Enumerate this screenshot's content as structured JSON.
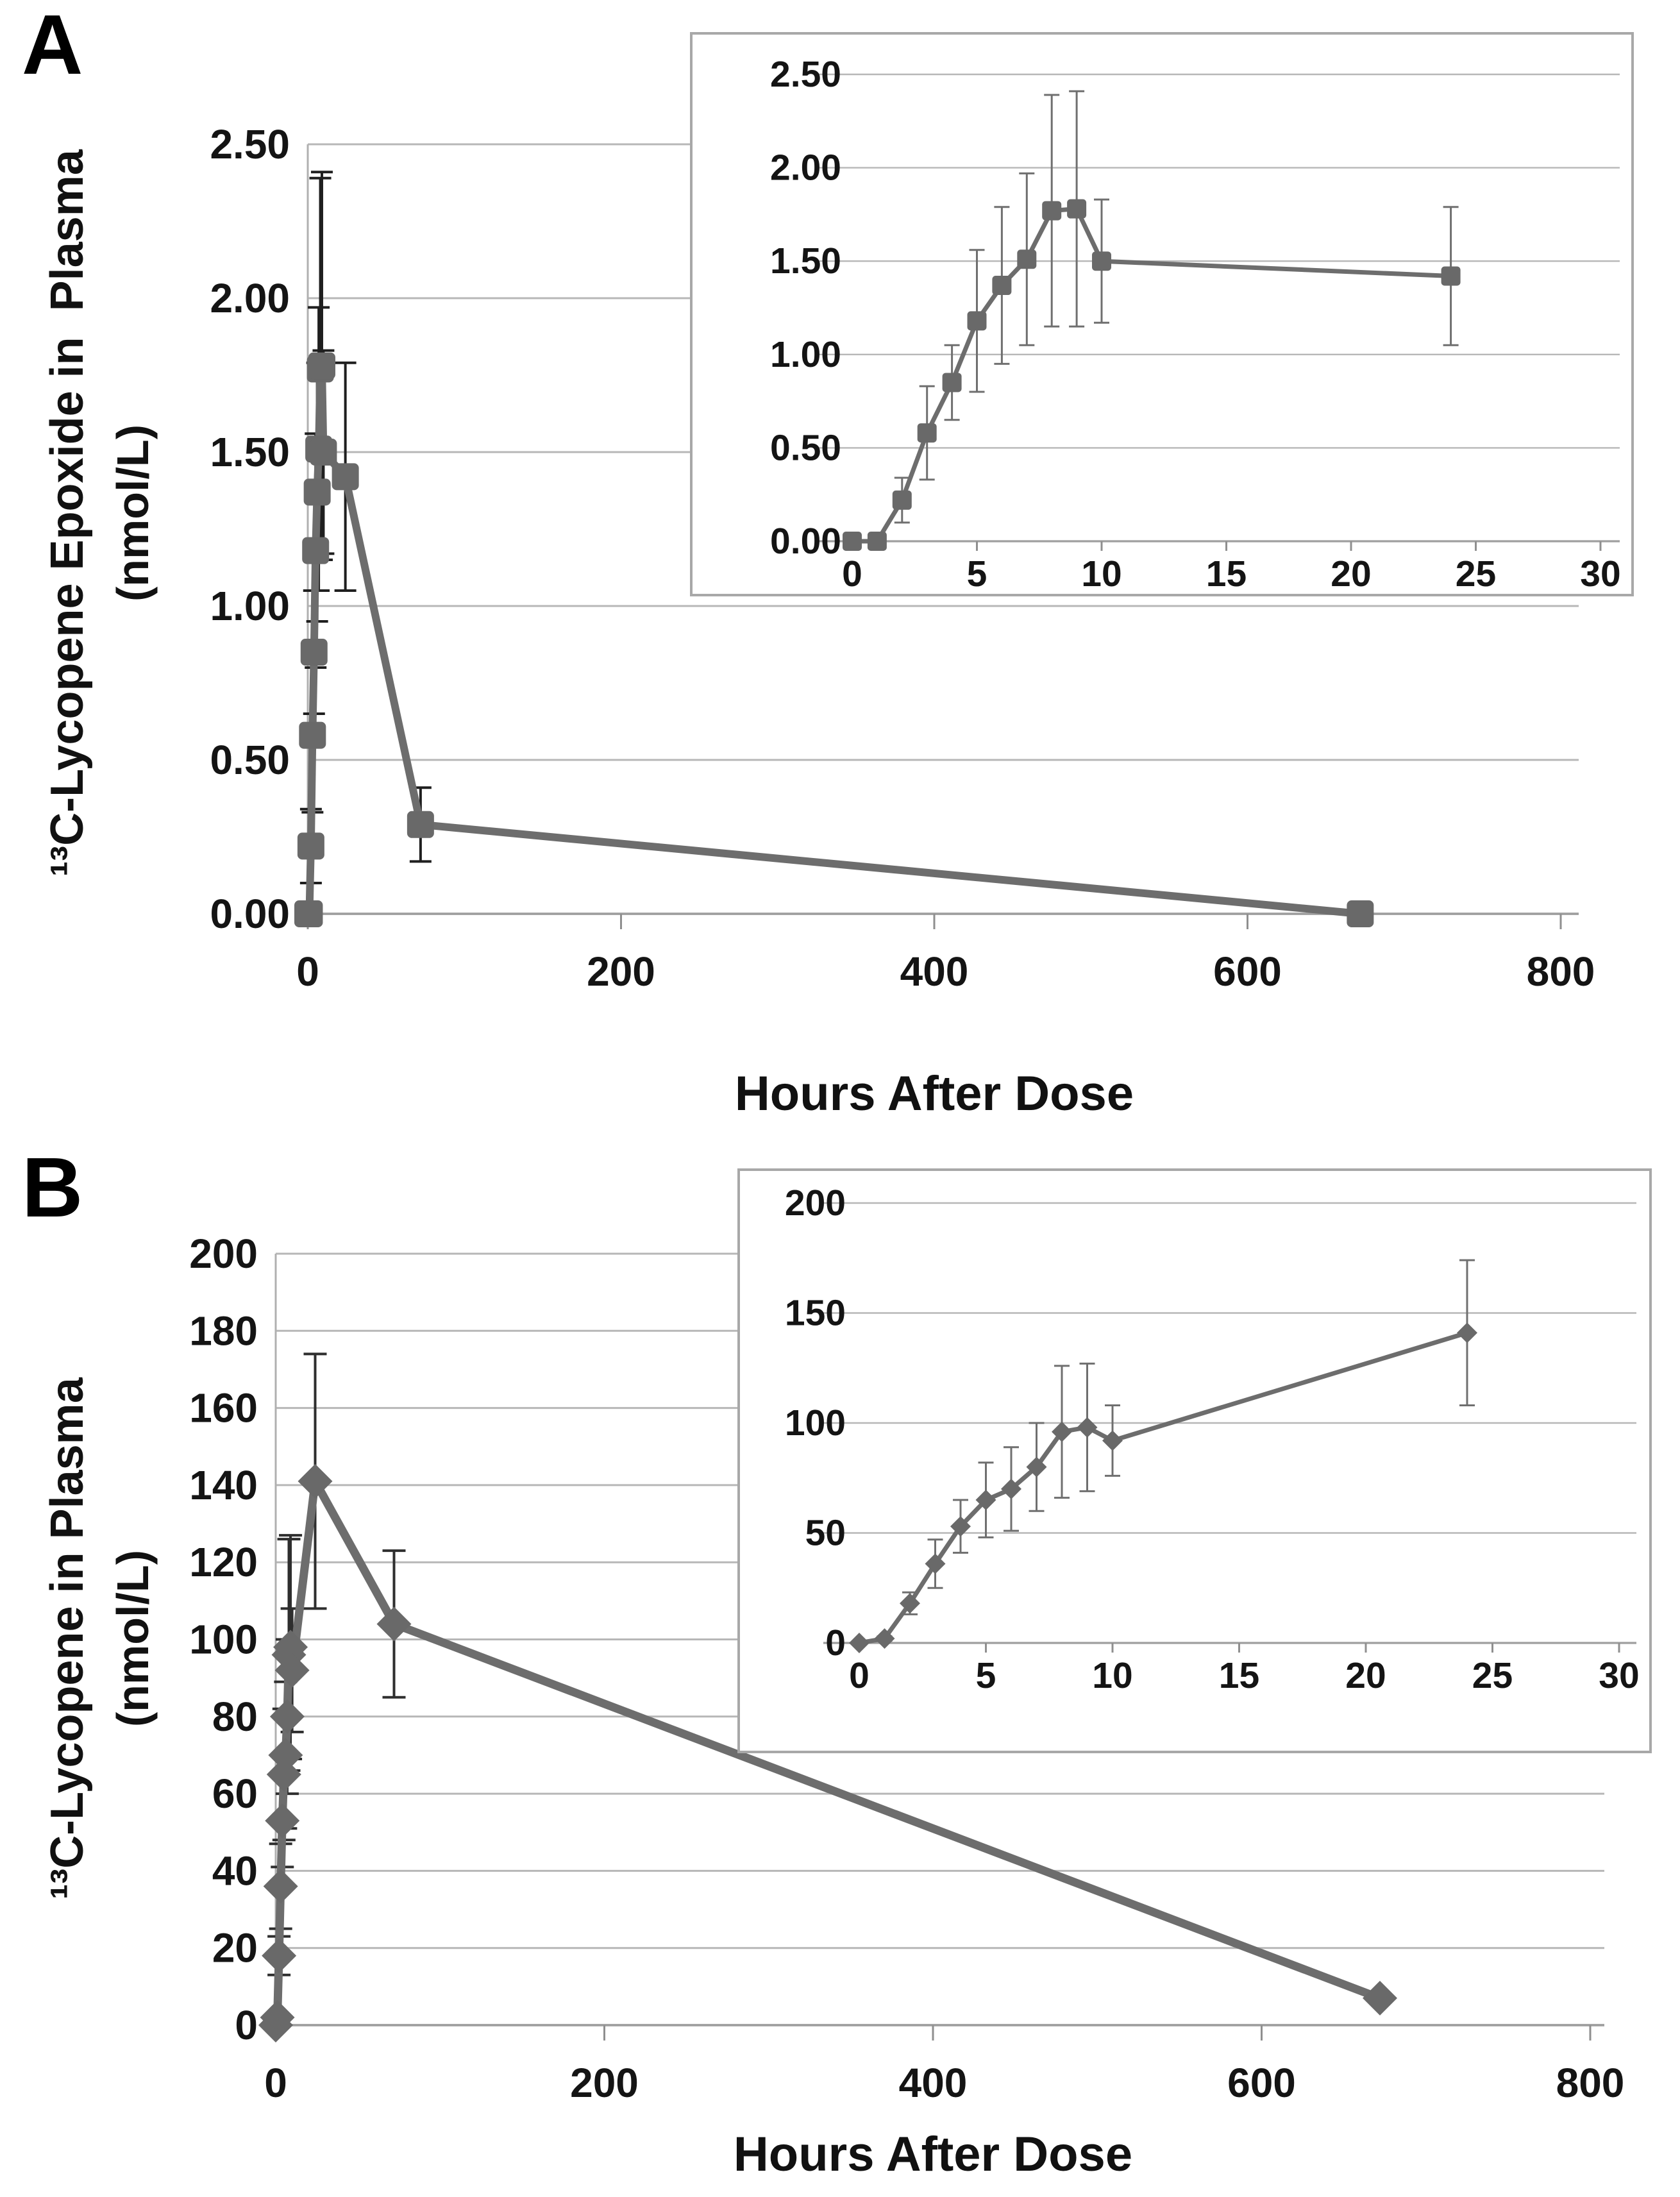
{
  "panels": {
    "a": {
      "label": "A",
      "y_title_line1": "¹³C-Lycopene Epoxide in  Plasma",
      "y_title_line2": "(nmol/L)",
      "x_title": "Hours After Dose"
    },
    "b": {
      "label": "B",
      "y_title_line1": "¹³C-Lycopene in Plasma",
      "y_title_line2": "(nmol/L)",
      "x_title": "Hours After Dose"
    }
  },
  "colors": {
    "series": "#6d6d6d",
    "marker": "#696969",
    "grid": "#b7b7b7",
    "axis": "#9f9f9f",
    "text": "#141414"
  },
  "chart_data": [
    {
      "id": "panel-a-main",
      "type": "line",
      "marker": "square",
      "title": "",
      "xlabel": "Hours After Dose",
      "ylabel": "13C-Lycopene Epoxide in Plasma (nmol/L)",
      "grid": "horizontal",
      "legend": null,
      "xlim": [
        0,
        800
      ],
      "ylim": [
        0,
        2.5
      ],
      "x_ticks": [
        "0",
        "200",
        "400",
        "600",
        "800"
      ],
      "y_ticks": [
        "0.00",
        "0.50",
        "1.00",
        "1.50",
        "2.00",
        "2.50"
      ],
      "x": [
        0,
        1,
        2,
        3,
        4,
        5,
        6,
        7,
        8,
        9,
        10,
        24,
        72,
        672
      ],
      "y": [
        0.0,
        0.0,
        0.22,
        0.58,
        0.85,
        1.18,
        1.37,
        1.51,
        1.77,
        1.78,
        1.5,
        1.42,
        0.29,
        0.0
      ],
      "yerr": [
        0,
        0,
        0.12,
        0.25,
        0.2,
        0.38,
        0.42,
        0.46,
        0.62,
        0.63,
        0.33,
        0.37,
        0.12,
        0
      ]
    },
    {
      "id": "panel-a-inset",
      "type": "line",
      "marker": "square",
      "title": "",
      "xlabel": "",
      "ylabel": "",
      "grid": "horizontal",
      "legend": null,
      "xlim": [
        0,
        30
      ],
      "ylim": [
        0,
        2.5
      ],
      "x_ticks": [
        "0",
        "5",
        "10",
        "15",
        "20",
        "25",
        "30"
      ],
      "y_ticks": [
        "0.00",
        "0.50",
        "1.00",
        "1.50",
        "2.00",
        "2.50"
      ],
      "x": [
        0,
        1,
        2,
        3,
        4,
        5,
        6,
        7,
        8,
        9,
        10,
        24
      ],
      "y": [
        0.0,
        0.0,
        0.22,
        0.58,
        0.85,
        1.18,
        1.37,
        1.51,
        1.77,
        1.78,
        1.5,
        1.42
      ],
      "yerr": [
        0,
        0,
        0.12,
        0.25,
        0.2,
        0.38,
        0.42,
        0.46,
        0.62,
        0.63,
        0.33,
        0.37
      ]
    },
    {
      "id": "panel-b-main",
      "type": "line",
      "marker": "diamond",
      "title": "",
      "xlabel": "Hours After Dose",
      "ylabel": "13C-Lycopene in Plasma (nmol/L)",
      "grid": "horizontal",
      "legend": null,
      "xlim": [
        0,
        800
      ],
      "ylim": [
        0,
        200
      ],
      "x_ticks": [
        "0",
        "200",
        "400",
        "600",
        "800"
      ],
      "y_ticks": [
        "0",
        "20",
        "40",
        "60",
        "80",
        "100",
        "120",
        "140",
        "160",
        "180",
        "200"
      ],
      "x": [
        0,
        1,
        2,
        3,
        4,
        5,
        6,
        7,
        8,
        9,
        10,
        24,
        72,
        672
      ],
      "y": [
        0,
        2,
        18,
        36,
        53,
        65,
        70,
        80,
        96,
        98,
        92,
        141,
        104,
        7
      ],
      "yerr": [
        0,
        1,
        5,
        11,
        12,
        17,
        19,
        20,
        30,
        29,
        16,
        33,
        19,
        0
      ]
    },
    {
      "id": "panel-b-inset",
      "type": "line",
      "marker": "diamond",
      "title": "",
      "xlabel": "",
      "ylabel": "",
      "grid": "horizontal",
      "legend": null,
      "xlim": [
        0,
        30
      ],
      "ylim": [
        0,
        200
      ],
      "x_ticks": [
        "0",
        "5",
        "10",
        "15",
        "20",
        "25",
        "30"
      ],
      "y_ticks": [
        "0",
        "50",
        "100",
        "150",
        "200"
      ],
      "x": [
        0,
        1,
        2,
        3,
        4,
        5,
        6,
        7,
        8,
        9,
        10,
        24
      ],
      "y": [
        0,
        2,
        18,
        36,
        53,
        65,
        70,
        80,
        96,
        98,
        92,
        141
      ],
      "yerr": [
        0,
        1,
        5,
        11,
        12,
        17,
        19,
        20,
        30,
        29,
        16,
        33
      ]
    }
  ]
}
